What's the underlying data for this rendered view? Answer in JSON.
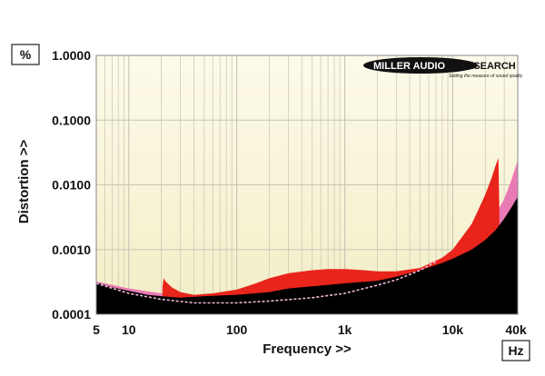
{
  "chart_data": {
    "type": "area",
    "xscale": "log",
    "yscale": "log",
    "xlabel": "Frequency >>",
    "ylabel": "Distortion >>",
    "y_unit": "%",
    "x_unit": "Hz",
    "xlim": [
      5,
      40000
    ],
    "ylim": [
      0.0001,
      1.0
    ],
    "grid": true,
    "x_ticks": [
      {
        "value": 5,
        "label": "5"
      },
      {
        "value": 10,
        "label": "10"
      },
      {
        "value": 100,
        "label": "100"
      },
      {
        "value": 1000,
        "label": "1k"
      },
      {
        "value": 10000,
        "label": "10k"
      },
      {
        "value": 40000,
        "label": "40k"
      }
    ],
    "y_ticks": [
      {
        "value": 1.0,
        "label": "1.0000"
      },
      {
        "value": 0.1,
        "label": "0.1000"
      },
      {
        "value": 0.01,
        "label": "0.0100"
      },
      {
        "value": 0.001,
        "label": "0.0010"
      },
      {
        "value": 0.0001,
        "label": "0.0001"
      }
    ],
    "series": [
      {
        "color": "#e8241b",
        "points": [
          [
            20.5,
            0.00026
          ],
          [
            21,
            0.00036
          ],
          [
            22,
            0.00032
          ],
          [
            25,
            0.00026
          ],
          [
            30,
            0.00022
          ],
          [
            40,
            0.0002
          ],
          [
            60,
            0.00021
          ],
          [
            100,
            0.00024
          ],
          [
            150,
            0.0003
          ],
          [
            200,
            0.00036
          ],
          [
            300,
            0.00043
          ],
          [
            500,
            0.00048
          ],
          [
            700,
            0.0005
          ],
          [
            1000,
            0.0005
          ],
          [
            1500,
            0.00048
          ],
          [
            2000,
            0.00046
          ],
          [
            3000,
            0.00046
          ],
          [
            5000,
            0.00052
          ],
          [
            8000,
            0.00075
          ],
          [
            10000,
            0.001
          ],
          [
            15000,
            0.0025
          ],
          [
            20000,
            0.007
          ],
          [
            23000,
            0.013
          ],
          [
            25000,
            0.02
          ],
          [
            26500,
            0.026
          ],
          [
            27000,
            0.0045
          ]
        ]
      },
      {
        "color": "#ea7ab4",
        "points": [
          [
            5,
            0.00032
          ],
          [
            10,
            0.00025
          ],
          [
            20,
            0.00021
          ],
          [
            40,
            0.00019
          ],
          [
            100,
            0.00021
          ],
          [
            300,
            0.00026
          ],
          [
            1000,
            0.0003
          ],
          [
            3000,
            0.0004
          ],
          [
            5000,
            0.00052
          ],
          [
            8000,
            0.0007
          ],
          [
            10000,
            0.00085
          ],
          [
            15000,
            0.0013
          ],
          [
            20000,
            0.0021
          ],
          [
            25000,
            0.0035
          ],
          [
            30000,
            0.006
          ],
          [
            35000,
            0.012
          ],
          [
            40000,
            0.024
          ]
        ]
      },
      {
        "color": "#000000",
        "points": [
          [
            5,
            0.00031
          ],
          [
            7,
            0.00026
          ],
          [
            10,
            0.00023
          ],
          [
            15,
            0.0002
          ],
          [
            20,
            0.00019
          ],
          [
            30,
            0.00018
          ],
          [
            50,
            0.00019
          ],
          [
            100,
            0.0002
          ],
          [
            200,
            0.00022
          ],
          [
            300,
            0.00025
          ],
          [
            500,
            0.00027
          ],
          [
            1000,
            0.0003
          ],
          [
            2000,
            0.00033
          ],
          [
            3000,
            0.00038
          ],
          [
            5000,
            0.00048
          ],
          [
            8000,
            0.00062
          ],
          [
            10000,
            0.00072
          ],
          [
            15000,
            0.001
          ],
          [
            20000,
            0.0014
          ],
          [
            25000,
            0.002
          ],
          [
            30000,
            0.003
          ],
          [
            35000,
            0.0045
          ],
          [
            40000,
            0.0065
          ]
        ]
      },
      {
        "style": "dashed",
        "color": "#f2b8d6",
        "points": [
          [
            5,
            0.0003
          ],
          [
            10,
            0.00021
          ],
          [
            20,
            0.00017
          ],
          [
            40,
            0.00015
          ],
          [
            70,
            0.00015
          ],
          [
            100,
            0.00015
          ],
          [
            200,
            0.00016
          ],
          [
            500,
            0.00018
          ],
          [
            1000,
            0.00021
          ],
          [
            2000,
            0.00028
          ],
          [
            3000,
            0.00034
          ],
          [
            5000,
            0.00048
          ],
          [
            7000,
            0.00065
          ]
        ]
      }
    ]
  },
  "logo": {
    "brand_a": "MILLER AUDIO",
    "brand_b": "RESEARCH",
    "tagline": "Setting the measure of sound quality"
  },
  "colors": {
    "plot_top": "#fdf9e6",
    "plot_bottom": "#f3eec8",
    "grid": "#c8c4b4"
  }
}
